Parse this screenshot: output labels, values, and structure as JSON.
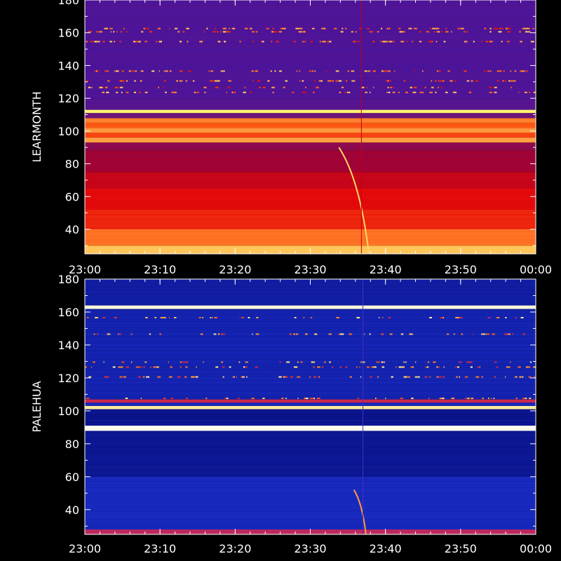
{
  "chart_data": [
    {
      "type": "heatmap",
      "ylabel": "LEARMONTH",
      "yticks": [
        40,
        60,
        80,
        100,
        120,
        140,
        160,
        180
      ],
      "ylim": [
        25,
        180
      ],
      "xticks": [
        "23:00",
        "23:10",
        "23:20",
        "23:30",
        "23:40",
        "23:50",
        "00:00"
      ],
      "xlim_minutes": [
        0,
        60
      ],
      "palette": "red-temperature",
      "bands": [
        {
          "from": 25,
          "to": 30,
          "intensity": 0.88
        },
        {
          "from": 30,
          "to": 40,
          "intensity": 0.74
        },
        {
          "from": 40,
          "to": 52,
          "intensity": 0.6
        },
        {
          "from": 52,
          "to": 65,
          "intensity": 0.54
        },
        {
          "from": 65,
          "to": 75,
          "intensity": 0.47
        },
        {
          "from": 75,
          "to": 88,
          "intensity": 0.38
        },
        {
          "from": 88,
          "to": 93,
          "intensity": 0.34
        },
        {
          "from": 93,
          "to": 96,
          "intensity": 0.82
        },
        {
          "from": 96,
          "to": 99,
          "intensity": 0.66
        },
        {
          "from": 99,
          "to": 102,
          "intensity": 0.8
        },
        {
          "from": 102,
          "to": 105,
          "intensity": 0.7
        },
        {
          "from": 105,
          "to": 108,
          "intensity": 0.76
        },
        {
          "from": 108,
          "to": 111,
          "intensity": 0.28
        },
        {
          "from": 111,
          "to": 113,
          "intensity": 0.98
        },
        {
          "from": 113,
          "to": 120,
          "intensity": 0.22
        },
        {
          "from": 120,
          "to": 180,
          "intensity": 0.2
        }
      ],
      "features": [
        {
          "kind": "drift-burst",
          "time_start": 33.8,
          "time_end": 37.8,
          "freq_top": 90,
          "freq_bottom": 25,
          "intensity": 0.92
        },
        {
          "kind": "vertical-line",
          "time": 36.8,
          "freq_from": 25,
          "freq_to": 180,
          "intensity": 0.45
        }
      ]
    },
    {
      "type": "heatmap",
      "ylabel": "PALEHUA",
      "yticks": [
        40,
        60,
        80,
        100,
        120,
        140,
        160,
        180
      ],
      "ylim": [
        25,
        180
      ],
      "xticks": [
        "23:00",
        "23:10",
        "23:20",
        "23:30",
        "23:40",
        "23:50",
        "00:00"
      ],
      "xlim_minutes": [
        0,
        60
      ],
      "palette": "blue-temperature",
      "bands": [
        {
          "from": 25,
          "to": 28,
          "intensity": 0.55
        },
        {
          "from": 28,
          "to": 60,
          "intensity": 0.22
        },
        {
          "from": 60,
          "to": 88,
          "intensity": 0.16
        },
        {
          "from": 88,
          "to": 91,
          "intensity": 1.0
        },
        {
          "from": 91,
          "to": 101,
          "intensity": 0.15
        },
        {
          "from": 101,
          "to": 103,
          "intensity": 0.93
        },
        {
          "from": 103,
          "to": 105,
          "intensity": 0.22
        },
        {
          "from": 105,
          "to": 107,
          "intensity": 0.58
        },
        {
          "from": 107,
          "to": 162,
          "intensity": 0.2
        },
        {
          "from": 162,
          "to": 164,
          "intensity": 0.99
        },
        {
          "from": 164,
          "to": 180,
          "intensity": 0.18
        }
      ],
      "features": [
        {
          "kind": "drift-burst",
          "time_start": 35.8,
          "time_end": 37.4,
          "freq_top": 52,
          "freq_bottom": 25,
          "intensity": 0.8
        },
        {
          "kind": "vertical-line",
          "time": 37.0,
          "freq_from": 25,
          "freq_to": 180,
          "intensity": 0.35
        }
      ]
    }
  ]
}
